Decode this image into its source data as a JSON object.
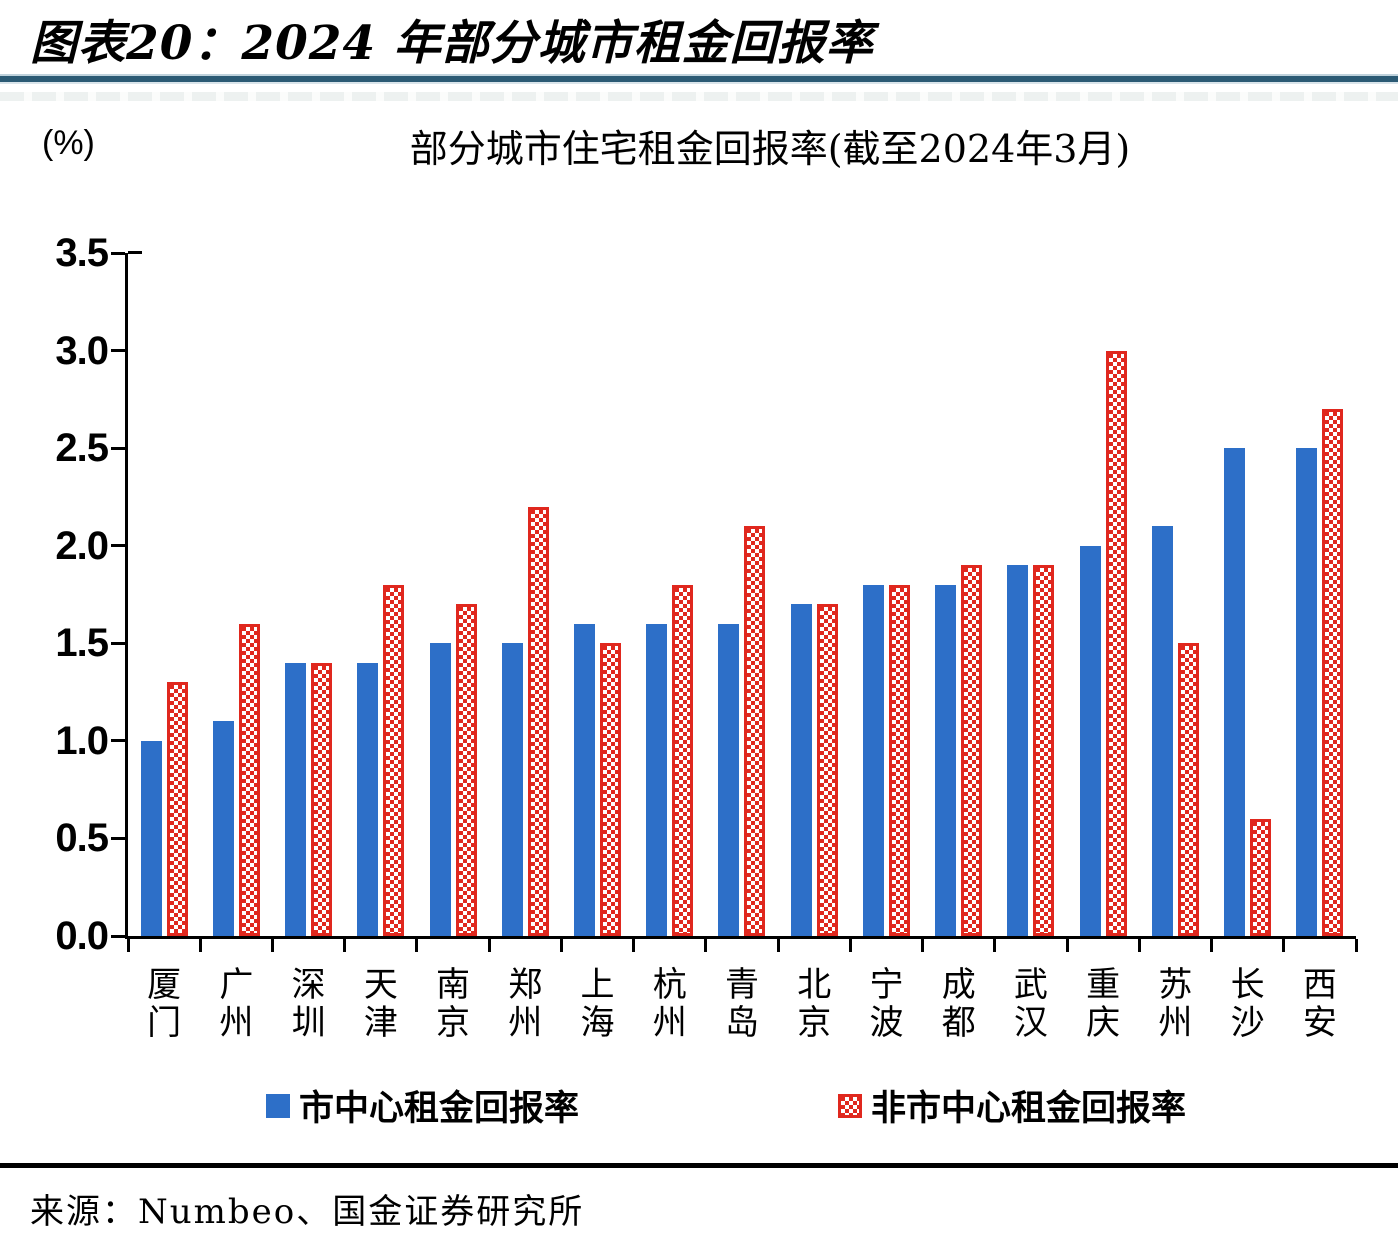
{
  "figure": {
    "title": "图表20：2024 年部分城市租金回报率",
    "source": "来源：Numbeo、国金证券研究所"
  },
  "chart_data": {
    "type": "bar",
    "title": "部分城市住宅租金回报率(截至2024年3月)",
    "unit_label": "(%)",
    "categories": [
      "厦门",
      "广州",
      "深圳",
      "天津",
      "南京",
      "郑州",
      "上海",
      "杭州",
      "青岛",
      "北京",
      "宁波",
      "成都",
      "武汉",
      "重庆",
      "苏州",
      "长沙",
      "西安"
    ],
    "series": [
      {
        "name": "市中心租金回报率",
        "color": "#2d6fc8",
        "pattern": "solid",
        "values": [
          1.0,
          1.1,
          1.4,
          1.4,
          1.5,
          1.5,
          1.6,
          1.6,
          1.6,
          1.7,
          1.8,
          1.8,
          1.9,
          2.0,
          2.1,
          2.5,
          2.5
        ]
      },
      {
        "name": "非市中心租金回报率",
        "color": "#e0281e",
        "pattern": "checker",
        "values": [
          1.3,
          1.6,
          1.4,
          1.8,
          1.7,
          2.2,
          1.5,
          1.8,
          2.1,
          1.7,
          1.8,
          1.9,
          1.9,
          3.0,
          1.5,
          0.6,
          2.7
        ]
      }
    ],
    "ylim": [
      0,
      3.5
    ],
    "ytick_labels": [
      "3.5",
      "3.0",
      "2.5",
      "2.0",
      "1.5",
      "1.0",
      "0.5",
      "0.0"
    ],
    "grid": false,
    "legend_position": "bottom",
    "axis_color": "#000000"
  }
}
